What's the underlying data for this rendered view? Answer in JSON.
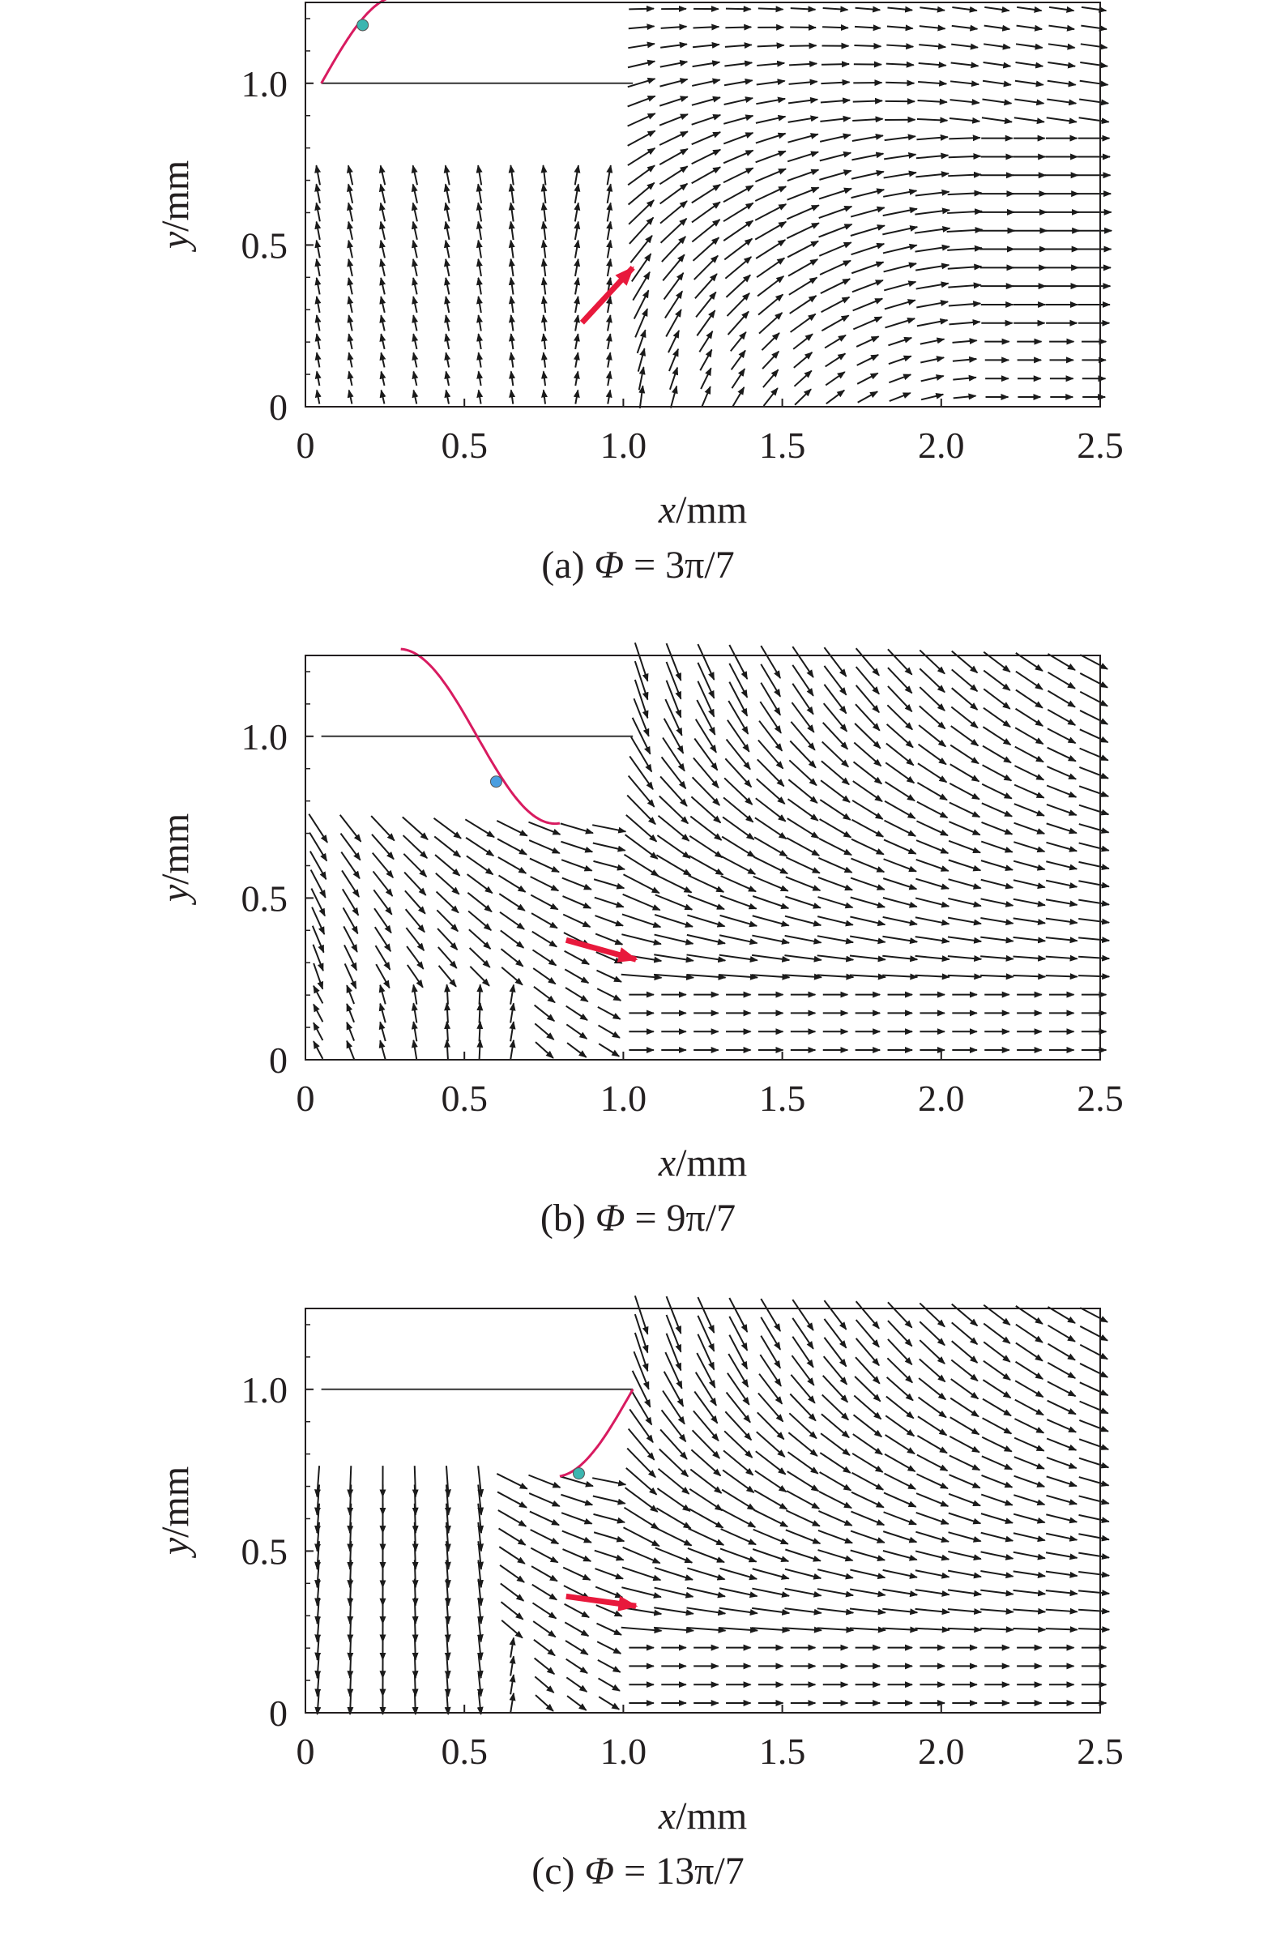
{
  "chart_data": [
    {
      "type": "vector-field",
      "caption": {
        "prefix": "(a) ",
        "symbol": "Φ",
        "value": " = 3π/7"
      },
      "xlabel": {
        "var": "x",
        "unit": "/mm"
      },
      "ylabel": {
        "var": "y",
        "unit": "/mm"
      },
      "xlim": [
        0,
        2.5
      ],
      "ylim": [
        0,
        1.25
      ],
      "xticks": [
        {
          "v": 0,
          "label": "0"
        },
        {
          "v": 0.5,
          "label": "0.5"
        },
        {
          "v": 1.0,
          "label": "1.0"
        },
        {
          "v": 1.5,
          "label": "1.5"
        },
        {
          "v": 2.0,
          "label": "2.0"
        },
        {
          "v": 2.5,
          "label": "2.5"
        }
      ],
      "yticks": [
        {
          "v": 0,
          "label": "0"
        },
        {
          "v": 0.5,
          "label": "0.5"
        },
        {
          "v": 1.0,
          "label": "1.0"
        }
      ],
      "grid": false,
      "colors": {
        "vectors": "#1a1a1a",
        "highlight": "#e8193c",
        "marker": "#3cb6b0",
        "curve": "#d81b60",
        "axes": "#231f20"
      },
      "cavity": {
        "x_start": 0,
        "x_end": 1.03,
        "y_top": 0.7
      },
      "regime": "expansion",
      "inset": {
        "line_y": 1.0,
        "line_x": [
          0.05,
          1.03
        ],
        "curve_x": [
          0.05,
          0.3
        ],
        "marker": [
          0.18,
          1.18
        ]
      },
      "highlight_arrow": {
        "from": [
          0.87,
          0.26
        ],
        "to": [
          1.03,
          0.43
        ]
      }
    },
    {
      "type": "vector-field",
      "caption": {
        "prefix": "(b) ",
        "symbol": "Φ",
        "value": " = 9π/7"
      },
      "xlabel": {
        "var": "x",
        "unit": "/mm"
      },
      "ylabel": {
        "var": "y",
        "unit": "/mm"
      },
      "xlim": [
        0,
        2.5
      ],
      "ylim": [
        0,
        1.25
      ],
      "xticks": [
        {
          "v": 0,
          "label": "0"
        },
        {
          "v": 0.5,
          "label": "0.5"
        },
        {
          "v": 1.0,
          "label": "1.0"
        },
        {
          "v": 1.5,
          "label": "1.5"
        },
        {
          "v": 2.0,
          "label": "2.0"
        },
        {
          "v": 2.5,
          "label": "2.5"
        }
      ],
      "yticks": [
        {
          "v": 0,
          "label": "0"
        },
        {
          "v": 0.5,
          "label": "0.5"
        },
        {
          "v": 1.0,
          "label": "1.0"
        }
      ],
      "grid": false,
      "colors": {
        "vectors": "#1a1a1a",
        "highlight": "#e8193c",
        "marker": "#4a9ee0",
        "curve": "#d81b60",
        "axes": "#231f20"
      },
      "cavity": {
        "x_start": 0,
        "x_end": 1.03,
        "y_top": 0.7
      },
      "regime": "compression",
      "inset": {
        "line_y": 1.0,
        "line_x": [
          0.05,
          1.03
        ],
        "curve_x": [
          0.3,
          0.8
        ],
        "marker": [
          0.6,
          0.86
        ]
      },
      "highlight_arrow": {
        "from": [
          0.82,
          0.37
        ],
        "to": [
          1.04,
          0.31
        ]
      }
    },
    {
      "type": "vector-field",
      "caption": {
        "prefix": "(c) ",
        "symbol": "Φ",
        "value": " = 13π/7"
      },
      "xlabel": {
        "var": "x",
        "unit": "/mm"
      },
      "ylabel": {
        "var": "y",
        "unit": "/mm"
      },
      "xlim": [
        0,
        2.5
      ],
      "ylim": [
        0,
        1.25
      ],
      "xticks": [
        {
          "v": 0,
          "label": "0"
        },
        {
          "v": 0.5,
          "label": "0.5"
        },
        {
          "v": 1.0,
          "label": "1.0"
        },
        {
          "v": 1.5,
          "label": "1.5"
        },
        {
          "v": 2.0,
          "label": "2.0"
        },
        {
          "v": 2.5,
          "label": "2.5"
        }
      ],
      "yticks": [
        {
          "v": 0,
          "label": "0"
        },
        {
          "v": 0.5,
          "label": "0.5"
        },
        {
          "v": 1.0,
          "label": "1.0"
        }
      ],
      "grid": false,
      "colors": {
        "vectors": "#1a1a1a",
        "highlight": "#e8193c",
        "marker": "#3cb6b0",
        "curve": "#d81b60",
        "axes": "#231f20"
      },
      "cavity": {
        "x_start": 0,
        "x_end": 1.03,
        "y_top": 0.7
      },
      "regime": "compression-late",
      "inset": {
        "line_y": 1.0,
        "line_x": [
          0.05,
          1.03
        ],
        "curve_x": [
          0.8,
          1.03
        ],
        "marker": [
          0.86,
          0.74
        ]
      },
      "highlight_arrow": {
        "from": [
          0.82,
          0.36
        ],
        "to": [
          1.04,
          0.33
        ]
      }
    }
  ]
}
